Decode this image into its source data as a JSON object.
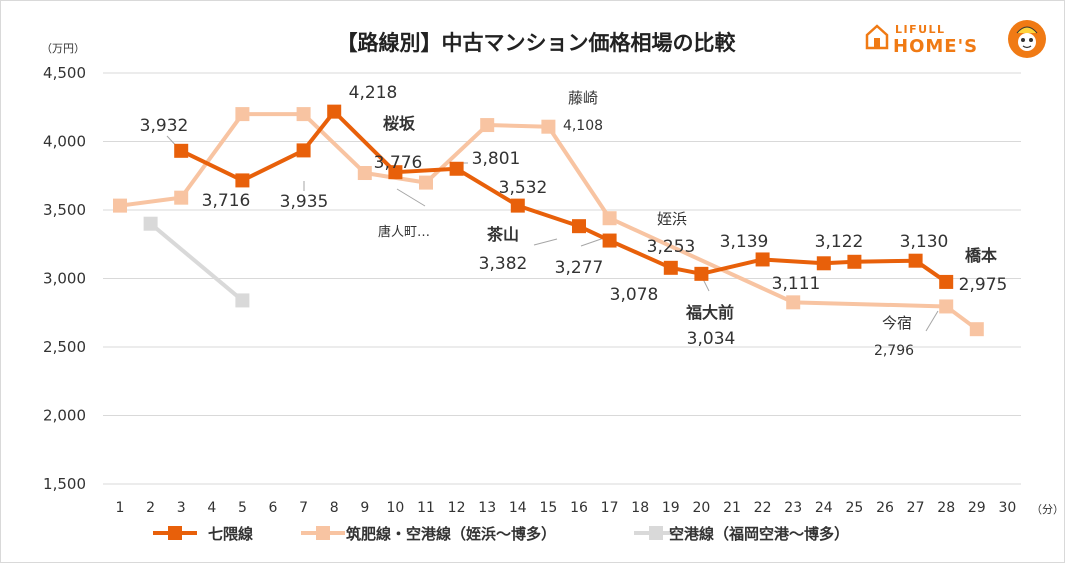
{
  "brand": {
    "top": "LIFULL",
    "main": "HOME'S"
  },
  "chart_data": {
    "type": "line",
    "title": "【路線別】中古マンション価格相場の比較",
    "ylabel": "（万円）",
    "xlabel": "（分）",
    "ylim": [
      1500,
      4500
    ],
    "yticks": [
      1500,
      2000,
      2500,
      3000,
      3500,
      4000,
      4500
    ],
    "ytick_labels": [
      "1,500",
      "2,000",
      "2,500",
      "3,000",
      "3,500",
      "4,000",
      "4,500"
    ],
    "xlim": [
      1,
      30
    ],
    "xticks": [
      1,
      2,
      3,
      4,
      5,
      6,
      7,
      8,
      9,
      10,
      11,
      12,
      13,
      14,
      15,
      16,
      17,
      18,
      19,
      20,
      21,
      22,
      23,
      24,
      25,
      26,
      27,
      28,
      29,
      30
    ],
    "xtick_labels": [
      "1",
      "2",
      "3",
      "4",
      "5",
      "6",
      "7",
      "8",
      "9",
      "10",
      "11",
      "12",
      "13",
      "14",
      "15",
      "16",
      "17",
      "18",
      "19",
      "20",
      "21",
      "22",
      "23",
      "24",
      "25",
      "26",
      "27",
      "28",
      "29",
      "30"
    ],
    "series": [
      {
        "name": "七隈線",
        "color": "#e8600a",
        "x": [
          3,
          5,
          7,
          8,
          10,
          12,
          14,
          16,
          17,
          19,
          20,
          22,
          24,
          25,
          27,
          28
        ],
        "values": [
          3932,
          3716,
          3935,
          4218,
          3776,
          3801,
          3532,
          3382,
          3277,
          3078,
          3034,
          3139,
          3111,
          3122,
          3130,
          2975
        ]
      },
      {
        "name": "筑肥線・空港線（姪浜〜博多）",
        "color": "#f8c4a2",
        "x": [
          1,
          3,
          5,
          7,
          9,
          11,
          13,
          15,
          17,
          23,
          28,
          29
        ],
        "values": [
          3532,
          3590,
          4200,
          4200,
          3770,
          3700,
          4120,
          4108,
          3440,
          2826,
          2796,
          2630
        ]
      },
      {
        "name": "空港線（福岡空港〜博多）",
        "color": "#d9d9d9",
        "x": [
          2,
          5
        ],
        "values": [
          3400,
          2840
        ]
      }
    ],
    "data_labels": [
      {
        "text": "3,932",
        "style": "value"
      },
      {
        "text": "3,716",
        "style": "value"
      },
      {
        "text": "3,935",
        "style": "value"
      },
      {
        "text": "4,218",
        "style": "value"
      },
      {
        "text": "3,776",
        "style": "value"
      },
      {
        "text": "3,801",
        "style": "value"
      },
      {
        "text": "3,532",
        "style": "value"
      },
      {
        "text": "3,382",
        "style": "value"
      },
      {
        "text": "3,277",
        "style": "value"
      },
      {
        "text": "3,078",
        "style": "value"
      },
      {
        "text": "3,034",
        "style": "value"
      },
      {
        "text": "3,139",
        "style": "value"
      },
      {
        "text": "3,111",
        "style": "value"
      },
      {
        "text": "3,122",
        "style": "value"
      },
      {
        "text": "3,130",
        "style": "value"
      },
      {
        "text": "2,975",
        "style": "value"
      },
      {
        "text": "4,108",
        "style": "value-small"
      },
      {
        "text": "2,796",
        "style": "value-small"
      },
      {
        "text": "3,253",
        "style": "value"
      }
    ],
    "station_labels": [
      {
        "text": "桜坂",
        "style": "bold"
      },
      {
        "text": "茶山",
        "style": "bold"
      },
      {
        "text": "福大前",
        "style": "bold"
      },
      {
        "text": "橋本",
        "style": "bold"
      },
      {
        "text": "藤崎",
        "style": "normal"
      },
      {
        "text": "姪浜",
        "style": "normal"
      },
      {
        "text": "今宿",
        "style": "normal"
      },
      {
        "text": "唐人町…",
        "style": "small"
      }
    ],
    "legend_position": "bottom"
  }
}
